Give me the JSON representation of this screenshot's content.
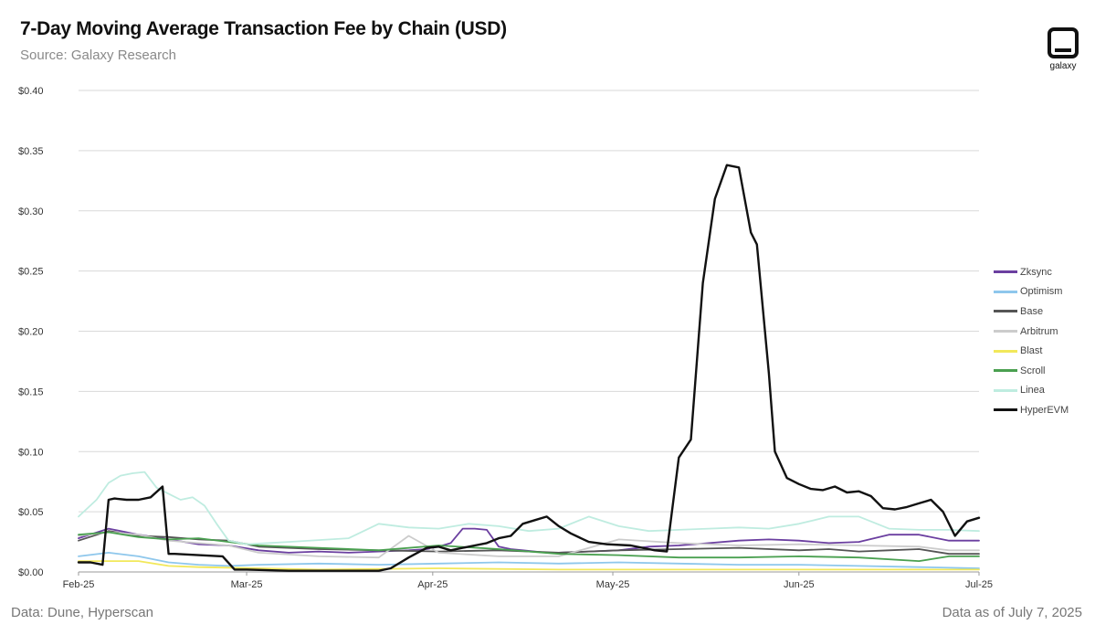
{
  "title": "7-Day Moving Average Transaction Fee by Chain (USD)",
  "subtitle": "Source: Galaxy Research",
  "logo_text": "galaxy",
  "footer_left": "Data: Dune, Hyperscan",
  "footer_right": "Data as of July 7, 2025",
  "chart_data": {
    "type": "line",
    "title": "7-Day Moving Average Transaction Fee by Chain (USD)",
    "xlabel": "",
    "ylabel": "",
    "ylim": [
      0,
      0.4
    ],
    "grid": true,
    "legend_position": "right",
    "y_ticks": [
      0,
      0.05,
      0.1,
      0.15,
      0.2,
      0.25,
      0.3,
      0.35,
      0.4
    ],
    "y_tick_labels": [
      "$0.00",
      "$0.05",
      "$0.10",
      "$0.15",
      "$0.20",
      "$0.25",
      "$0.30",
      "$0.35",
      "$0.40"
    ],
    "x_ticks": [
      0,
      28,
      59,
      89,
      120,
      150
    ],
    "x_tick_labels": [
      "Feb-25",
      "Mar-25",
      "Apr-25",
      "May-25",
      "Jun-25",
      "Jul-25"
    ],
    "x_range": [
      0,
      150
    ],
    "series": [
      {
        "name": "Zksync",
        "color": "#6b3fa0",
        "x": [
          0,
          5,
          10,
          15,
          20,
          25,
          30,
          35,
          40,
          45,
          50,
          55,
          58,
          60,
          62,
          64,
          66,
          68,
          70,
          72,
          74,
          76,
          78,
          80,
          85,
          90,
          95,
          100,
          105,
          110,
          115,
          120,
          125,
          130,
          135,
          140,
          145,
          150
        ],
        "values": [
          0.028,
          0.036,
          0.031,
          0.027,
          0.023,
          0.022,
          0.018,
          0.016,
          0.017,
          0.016,
          0.017,
          0.018,
          0.019,
          0.021,
          0.024,
          0.036,
          0.036,
          0.035,
          0.021,
          0.019,
          0.018,
          0.017,
          0.016,
          0.016,
          0.017,
          0.018,
          0.021,
          0.022,
          0.024,
          0.026,
          0.027,
          0.026,
          0.024,
          0.025,
          0.031,
          0.031,
          0.026,
          0.026
        ]
      },
      {
        "name": "Optimism",
        "color": "#8ec7ec",
        "x": [
          0,
          5,
          10,
          15,
          20,
          25,
          30,
          40,
          50,
          60,
          70,
          80,
          90,
          100,
          110,
          120,
          130,
          140,
          150
        ],
        "values": [
          0.013,
          0.016,
          0.013,
          0.008,
          0.006,
          0.005,
          0.006,
          0.007,
          0.006,
          0.007,
          0.008,
          0.007,
          0.008,
          0.007,
          0.006,
          0.006,
          0.005,
          0.004,
          0.003
        ]
      },
      {
        "name": "Base",
        "color": "#555555",
        "x": [
          0,
          5,
          10,
          15,
          20,
          25,
          30,
          40,
          50,
          60,
          70,
          80,
          90,
          100,
          110,
          120,
          125,
          130,
          135,
          140,
          145,
          150
        ],
        "values": [
          0.026,
          0.034,
          0.03,
          0.029,
          0.027,
          0.026,
          0.021,
          0.019,
          0.018,
          0.017,
          0.018,
          0.016,
          0.018,
          0.019,
          0.02,
          0.018,
          0.019,
          0.017,
          0.018,
          0.019,
          0.015,
          0.015
        ]
      },
      {
        "name": "Arbitrum",
        "color": "#cccccc",
        "x": [
          0,
          5,
          10,
          15,
          20,
          25,
          30,
          40,
          50,
          55,
          60,
          70,
          80,
          90,
          100,
          110,
          120,
          130,
          140,
          145,
          150
        ],
        "values": [
          0.03,
          0.033,
          0.031,
          0.026,
          0.024,
          0.022,
          0.016,
          0.013,
          0.012,
          0.03,
          0.016,
          0.013,
          0.013,
          0.027,
          0.024,
          0.022,
          0.023,
          0.022,
          0.021,
          0.018,
          0.018
        ]
      },
      {
        "name": "Blast",
        "color": "#f2e85a",
        "x": [
          0,
          10,
          15,
          20,
          30,
          40,
          60,
          80,
          100,
          120,
          150
        ],
        "values": [
          0.009,
          0.009,
          0.005,
          0.004,
          0.003,
          0.002,
          0.003,
          0.002,
          0.002,
          0.002,
          0.002
        ]
      },
      {
        "name": "Scroll",
        "color": "#4aa050",
        "x": [
          0,
          5,
          10,
          15,
          20,
          25,
          30,
          40,
          50,
          60,
          70,
          80,
          90,
          100,
          110,
          120,
          130,
          140,
          145,
          150
        ],
        "values": [
          0.031,
          0.033,
          0.029,
          0.027,
          0.028,
          0.025,
          0.022,
          0.02,
          0.018,
          0.022,
          0.019,
          0.015,
          0.014,
          0.012,
          0.012,
          0.013,
          0.012,
          0.009,
          0.013,
          0.013
        ]
      },
      {
        "name": "Linea",
        "color": "#bfece0",
        "x": [
          0,
          3,
          5,
          7,
          9,
          11,
          13,
          15,
          17,
          19,
          21,
          23,
          25,
          28,
          35,
          45,
          50,
          55,
          60,
          65,
          70,
          75,
          80,
          85,
          90,
          95,
          100,
          105,
          110,
          115,
          120,
          125,
          130,
          135,
          140,
          145,
          150
        ],
        "values": [
          0.046,
          0.06,
          0.074,
          0.08,
          0.082,
          0.083,
          0.07,
          0.065,
          0.06,
          0.062,
          0.055,
          0.04,
          0.026,
          0.023,
          0.025,
          0.028,
          0.04,
          0.037,
          0.036,
          0.04,
          0.038,
          0.034,
          0.036,
          0.046,
          0.038,
          0.034,
          0.035,
          0.036,
          0.037,
          0.036,
          0.04,
          0.046,
          0.046,
          0.036,
          0.035,
          0.035,
          0.034
        ]
      },
      {
        "name": "HyperEVM",
        "color": "#111111",
        "x": [
          0,
          2,
          4,
          5,
          6,
          8,
          10,
          12,
          14,
          15,
          16,
          20,
          24,
          26,
          28,
          35,
          40,
          45,
          50,
          52,
          55,
          58,
          60,
          62,
          64,
          66,
          68,
          70,
          72,
          74,
          76,
          78,
          80,
          82,
          85,
          88,
          92,
          96,
          98,
          100,
          102,
          104,
          106,
          108,
          110,
          112,
          113,
          115,
          116,
          118,
          120,
          122,
          124,
          126,
          128,
          130,
          132,
          134,
          136,
          138,
          140,
          142,
          144,
          146,
          148,
          150
        ],
        "values": [
          0.008,
          0.008,
          0.006,
          0.06,
          0.061,
          0.06,
          0.06,
          0.062,
          0.071,
          0.015,
          0.015,
          0.014,
          0.013,
          0.002,
          0.002,
          0.001,
          0.001,
          0.001,
          0.001,
          0.003,
          0.012,
          0.02,
          0.021,
          0.018,
          0.02,
          0.022,
          0.024,
          0.028,
          0.03,
          0.04,
          0.043,
          0.046,
          0.038,
          0.032,
          0.025,
          0.023,
          0.022,
          0.018,
          0.017,
          0.095,
          0.11,
          0.24,
          0.31,
          0.338,
          0.336,
          0.282,
          0.272,
          0.165,
          0.1,
          0.078,
          0.073,
          0.069,
          0.068,
          0.071,
          0.066,
          0.067,
          0.063,
          0.053,
          0.052,
          0.054,
          0.057,
          0.06,
          0.05,
          0.03,
          0.042,
          0.045
        ]
      }
    ]
  }
}
